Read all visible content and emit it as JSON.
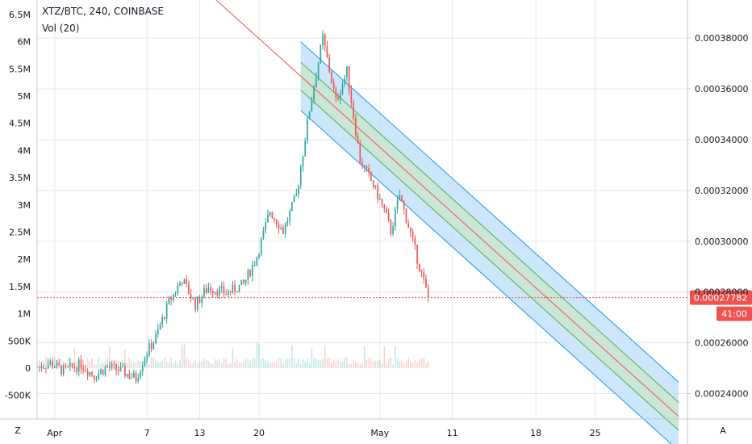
{
  "header": {
    "symbol_line": "XTZ/BTC, 240, COINBASE",
    "volume_line": "Vol (20)"
  },
  "controls": {
    "left_corner": "Z",
    "right_corner": "A"
  },
  "price_badge": {
    "value": "0.00027782",
    "countdown": "41:00",
    "color": "#ef5350"
  },
  "colors": {
    "up": "#26a69a",
    "down": "#ef5350",
    "channel_outer_fill": "#bbdefb",
    "channel_outer_line": "#2196f3",
    "channel_inner_fill": "#c8e6c9",
    "channel_inner_line": "#4caf50",
    "center_line": "#ef5350"
  },
  "chart_data": {
    "type": "candlestick",
    "title": "XTZ/BTC, 240, COINBASE",
    "indicators": [
      "Vol (20)"
    ],
    "x_tick_labels": [
      "Apr",
      "7",
      "13",
      "20",
      "May",
      "11",
      "18",
      "25"
    ],
    "right_axis": {
      "ticks": [
        "0.00024000",
        "0.00026000",
        "0.00028000",
        "0.00030000",
        "0.00032000",
        "0.00034000",
        "0.00036000",
        "0.00038000"
      ],
      "ylim": [
        0.00023,
        0.000395
      ]
    },
    "left_axis": {
      "ticks": [
        "-500K",
        "0",
        "500K",
        "1M",
        "1.5M",
        "2M",
        "2.5M",
        "3M",
        "3.5M",
        "4M",
        "4.5M",
        "5M",
        "5.5M",
        "6M",
        "6.5M"
      ]
    },
    "last_price": 0.00027782,
    "price_path": [
      {
        "t": 0,
        "p": 0.0002505
      },
      {
        "t": 6,
        "p": 0.000252
      },
      {
        "t": 12,
        "p": 0.000249
      },
      {
        "t": 20,
        "p": 0.0002515
      },
      {
        "t": 26,
        "p": 0.000247
      },
      {
        "t": 32,
        "p": 0.0002505
      },
      {
        "t": 38,
        "p": 0.000249
      },
      {
        "t": 45,
        "p": 0.000246
      },
      {
        "t": 49,
        "p": 0.000255
      },
      {
        "t": 54,
        "p": 0.000262
      },
      {
        "t": 60,
        "p": 0.000276
      },
      {
        "t": 66,
        "p": 0.000285
      },
      {
        "t": 72,
        "p": 0.000275
      },
      {
        "t": 78,
        "p": 0.000282
      },
      {
        "t": 86,
        "p": 0.0002795
      },
      {
        "t": 94,
        "p": 0.000283
      },
      {
        "t": 100,
        "p": 0.000294
      },
      {
        "t": 106,
        "p": 0.000312
      },
      {
        "t": 112,
        "p": 0.000304
      },
      {
        "t": 118,
        "p": 0.000318
      },
      {
        "t": 124,
        "p": 0.000352
      },
      {
        "t": 130,
        "p": 0.00038
      },
      {
        "t": 136,
        "p": 0.000355
      },
      {
        "t": 141,
        "p": 0.000367
      },
      {
        "t": 147,
        "p": 0.000332
      },
      {
        "t": 153,
        "p": 0.000322
      },
      {
        "t": 158,
        "p": 0.000312
      },
      {
        "t": 161,
        "p": 0.000304
      },
      {
        "t": 165,
        "p": 0.000318
      },
      {
        "t": 170,
        "p": 0.000303
      },
      {
        "t": 174,
        "p": 0.00029
      },
      {
        "t": 178,
        "p": 0.0002778
      }
    ],
    "regression_channel": {
      "start_t": 120,
      "end_t": 292,
      "center_start": 0.000365,
      "center_end": 0.000231,
      "inner_offset": 5.5e-06,
      "outer_offset": 1.35e-05
    }
  }
}
